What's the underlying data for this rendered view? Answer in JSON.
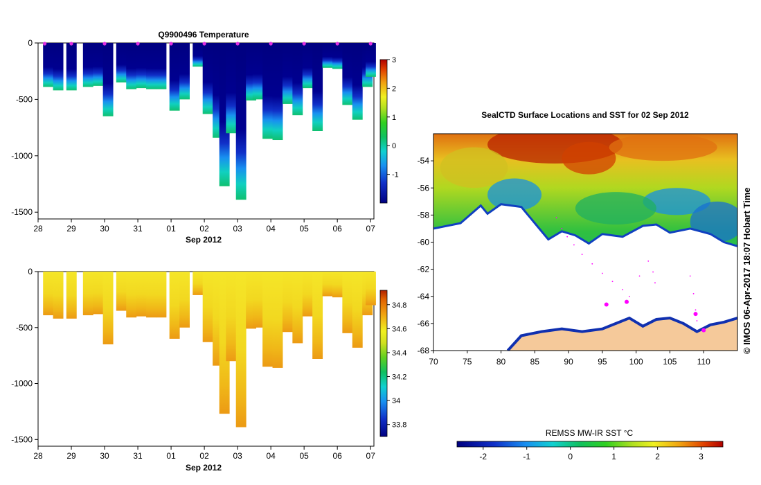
{
  "chart_data": [
    {
      "id": "temp",
      "type": "heatmap",
      "title": "Q9900496  Temperature",
      "xlabel": "Sep 2012",
      "ylabel": "",
      "x_ticks": [
        "28",
        "29",
        "30",
        "31",
        "01",
        "02",
        "03",
        "04",
        "05",
        "06",
        "07"
      ],
      "x_range_days": [
        0,
        10.1
      ],
      "y_ticks": [
        0,
        -500,
        -1000,
        -1500
      ],
      "y_range": [
        0,
        -1560
      ],
      "colorbar": {
        "min": -2.0,
        "max": 3.0,
        "ticks": [
          3,
          2,
          1,
          0,
          -1
        ],
        "tick_labels": [
          "3",
          "2",
          "1",
          "0",
          "-1"
        ]
      },
      "profile_marker_days": [
        0.2,
        1.0,
        2.0,
        3.0,
        4.0,
        5.0,
        6.0,
        7.0,
        8.0,
        9.0,
        10.0
      ],
      "profiles": [
        {
          "day": 0.3,
          "max_depth": 390
        },
        {
          "day": 0.6,
          "max_depth": 420
        },
        {
          "day": 1.0,
          "max_depth": 420
        },
        {
          "day": 1.5,
          "max_depth": 390
        },
        {
          "day": 1.8,
          "max_depth": 380
        },
        {
          "day": 2.1,
          "max_depth": 650
        },
        {
          "day": 2.5,
          "max_depth": 350
        },
        {
          "day": 2.8,
          "max_depth": 410
        },
        {
          "day": 3.1,
          "max_depth": 400
        },
        {
          "day": 3.4,
          "max_depth": 410
        },
        {
          "day": 3.7,
          "max_depth": 410
        },
        {
          "day": 4.1,
          "max_depth": 600
        },
        {
          "day": 4.4,
          "max_depth": 500
        },
        {
          "day": 4.8,
          "max_depth": 210
        },
        {
          "day": 5.1,
          "max_depth": 630
        },
        {
          "day": 5.4,
          "max_depth": 840
        },
        {
          "day": 5.6,
          "max_depth": 1270
        },
        {
          "day": 5.8,
          "max_depth": 800
        },
        {
          "day": 6.1,
          "max_depth": 1390
        },
        {
          "day": 6.4,
          "max_depth": 510
        },
        {
          "day": 6.6,
          "max_depth": 500
        },
        {
          "day": 6.9,
          "max_depth": 850
        },
        {
          "day": 7.2,
          "max_depth": 860
        },
        {
          "day": 7.5,
          "max_depth": 540
        },
        {
          "day": 7.8,
          "max_depth": 640
        },
        {
          "day": 8.1,
          "max_depth": 400
        },
        {
          "day": 8.4,
          "max_depth": 780
        },
        {
          "day": 8.7,
          "max_depth": 220
        },
        {
          "day": 9.0,
          "max_depth": 230
        },
        {
          "day": 9.3,
          "max_depth": 550
        },
        {
          "day": 9.6,
          "max_depth": 680
        },
        {
          "day": 9.9,
          "max_depth": 390
        },
        {
          "day": 10.0,
          "max_depth": 300
        }
      ]
    },
    {
      "id": "sal",
      "type": "heatmap",
      "title": "",
      "xlabel": "Sep 2012",
      "ylabel": "",
      "x_ticks": [
        "28",
        "29",
        "30",
        "31",
        "01",
        "02",
        "03",
        "04",
        "05",
        "06",
        "07"
      ],
      "x_range_days": [
        0,
        10.1
      ],
      "y_ticks": [
        0,
        -500,
        -1000,
        -1500
      ],
      "y_range": [
        0,
        -1560
      ],
      "colorbar": {
        "min": 33.7,
        "max": 34.92,
        "ticks": [
          34.8,
          34.6,
          34.4,
          34.2,
          34.0,
          33.8
        ],
        "tick_labels": [
          "34.8",
          "34.6",
          "34.4",
          "34.2",
          "34",
          "33.8"
        ]
      },
      "profiles_same_as": "temp"
    },
    {
      "id": "map",
      "type": "heatmap",
      "title": "SealCTD Surface Locations and SST for 02 Sep 2012",
      "xlabel": "",
      "ylabel": "",
      "lon_range": [
        70,
        115
      ],
      "lat_range": [
        -68,
        -52
      ],
      "x_ticks": [
        70,
        75,
        80,
        85,
        90,
        95,
        100,
        105,
        110
      ],
      "y_ticks": [
        -54,
        -56,
        -58,
        -60,
        -62,
        -64,
        -66,
        -68
      ],
      "colorbar": {
        "label": "REMSS MW-IR SST °C",
        "min": -2.6,
        "max": 3.5,
        "ticks": [
          -2,
          -1,
          0,
          1,
          2,
          3
        ],
        "tick_labels": [
          "-2",
          "-1",
          "0",
          "1",
          "2",
          "3"
        ]
      },
      "track_points": [
        {
          "lon": 88.2,
          "lat": -58.2
        },
        {
          "lon": 89.0,
          "lat": -59.0
        },
        {
          "lon": 89.8,
          "lat": -59.6
        },
        {
          "lon": 90.8,
          "lat": -60.2
        },
        {
          "lon": 92.0,
          "lat": -60.9
        },
        {
          "lon": 93.5,
          "lat": -61.6
        },
        {
          "lon": 95.0,
          "lat": -62.3
        },
        {
          "lon": 96.5,
          "lat": -62.9
        },
        {
          "lon": 98.0,
          "lat": -63.5
        },
        {
          "lon": 99.0,
          "lat": -64.0
        },
        {
          "lon": 100.5,
          "lat": -62.5
        },
        {
          "lon": 101.8,
          "lat": -61.4
        },
        {
          "lon": 102.5,
          "lat": -62.2
        },
        {
          "lon": 102.8,
          "lat": -63.0
        },
        {
          "lon": 108.0,
          "lat": -62.5
        },
        {
          "lon": 108.5,
          "lat": -63.8
        },
        {
          "lon": 108.8,
          "lat": -65.0
        },
        {
          "lon": 109.0,
          "lat": -65.8
        }
      ],
      "highlight_points": [
        {
          "lon": 95.6,
          "lat": -64.6
        },
        {
          "lon": 98.6,
          "lat": -64.4
        },
        {
          "lon": 108.8,
          "lat": -65.3
        },
        {
          "lon": 110.0,
          "lat": -66.5
        }
      ],
      "ice_edge": [
        {
          "lon": 70,
          "lat": -59.0
        },
        {
          "lon": 74,
          "lat": -58.6
        },
        {
          "lon": 77,
          "lat": -57.3
        },
        {
          "lon": 78,
          "lat": -57.9
        },
        {
          "lon": 80,
          "lat": -57.2
        },
        {
          "lon": 83,
          "lat": -57.4
        },
        {
          "lon": 85,
          "lat": -58.6
        },
        {
          "lon": 87,
          "lat": -59.8
        },
        {
          "lon": 89,
          "lat": -59.2
        },
        {
          "lon": 91,
          "lat": -59.5
        },
        {
          "lon": 93,
          "lat": -60.1
        },
        {
          "lon": 95,
          "lat": -59.4
        },
        {
          "lon": 98,
          "lat": -59.6
        },
        {
          "lon": 101,
          "lat": -58.8
        },
        {
          "lon": 103,
          "lat": -58.7
        },
        {
          "lon": 105,
          "lat": -59.3
        },
        {
          "lon": 108,
          "lat": -59.0
        },
        {
          "lon": 111,
          "lat": -59.4
        },
        {
          "lon": 113,
          "lat": -60.0
        },
        {
          "lon": 115,
          "lat": -60.3
        }
      ],
      "coast": [
        {
          "lon": 81,
          "lat": -68
        },
        {
          "lon": 83,
          "lat": -66.9
        },
        {
          "lon": 86,
          "lat": -66.6
        },
        {
          "lon": 89,
          "lat": -66.4
        },
        {
          "lon": 92,
          "lat": -66.6
        },
        {
          "lon": 95,
          "lat": -66.4
        },
        {
          "lon": 97,
          "lat": -66.0
        },
        {
          "lon": 99,
          "lat": -65.6
        },
        {
          "lon": 101,
          "lat": -66.2
        },
        {
          "lon": 103,
          "lat": -65.7
        },
        {
          "lon": 105,
          "lat": -65.6
        },
        {
          "lon": 107,
          "lat": -66.0
        },
        {
          "lon": 109,
          "lat": -66.6
        },
        {
          "lon": 111,
          "lat": -66.1
        },
        {
          "lon": 113,
          "lat": -65.9
        },
        {
          "lon": 115,
          "lat": -65.6
        }
      ],
      "land_color": "#f5c99a",
      "marker_color": "#ff00ff"
    }
  ],
  "map_watermark": "© IMOS 06-Apr-2017 18:07 Hobart Time",
  "colors": {
    "background": "#ffffff",
    "grid": "#000000"
  }
}
